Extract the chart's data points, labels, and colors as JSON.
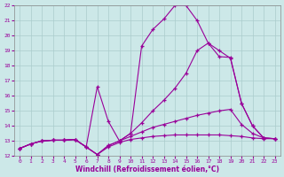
{
  "background_color": "#cce8e8",
  "grid_color": "#aacccc",
  "line_color": "#990099",
  "xlabel": "Windchill (Refroidissement éolien,°C)",
  "xlabel_color": "#990099",
  "ylabel_ticks": [
    12,
    13,
    14,
    15,
    16,
    17,
    18,
    19,
    20,
    21,
    22
  ],
  "xlabel_ticks": [
    0,
    1,
    2,
    3,
    4,
    5,
    6,
    7,
    8,
    9,
    10,
    11,
    12,
    13,
    14,
    15,
    16,
    17,
    18,
    19,
    20,
    21,
    22,
    23
  ],
  "xlim": [
    -0.5,
    23.5
  ],
  "ylim": [
    12,
    22
  ],
  "line1_x": [
    0,
    1,
    2,
    3,
    4,
    5,
    6,
    7,
    8,
    9,
    10,
    11,
    12,
    13,
    14,
    15,
    16,
    17,
    18,
    19,
    20,
    21,
    22,
    23
  ],
  "line1_y": [
    12.5,
    12.8,
    13.0,
    13.05,
    13.05,
    13.1,
    12.6,
    12.1,
    12.6,
    12.9,
    13.1,
    13.2,
    13.3,
    13.35,
    13.4,
    13.4,
    13.4,
    13.4,
    13.4,
    13.35,
    13.3,
    13.2,
    13.15,
    13.15
  ],
  "line2_x": [
    0,
    1,
    2,
    3,
    4,
    5,
    6,
    7,
    8,
    9,
    10,
    11,
    12,
    13,
    14,
    15,
    16,
    17,
    18,
    19,
    20,
    21,
    22,
    23
  ],
  "line2_y": [
    12.5,
    12.8,
    13.0,
    13.05,
    13.05,
    13.1,
    12.6,
    12.1,
    12.7,
    13.0,
    13.3,
    13.6,
    13.9,
    14.1,
    14.3,
    14.5,
    14.7,
    14.85,
    15.0,
    15.1,
    14.1,
    13.5,
    13.2,
    13.15
  ],
  "line3_x": [
    0,
    1,
    2,
    3,
    4,
    5,
    6,
    7,
    8,
    9,
    10,
    11,
    12,
    13,
    14,
    15,
    16,
    17,
    18,
    19,
    20,
    21,
    22,
    23
  ],
  "line3_y": [
    12.5,
    12.8,
    13.0,
    13.05,
    13.05,
    13.1,
    12.6,
    16.6,
    14.3,
    13.0,
    13.5,
    14.2,
    15.0,
    15.7,
    16.5,
    17.5,
    19.0,
    19.5,
    19.0,
    18.5,
    15.5,
    14.0,
    13.2,
    13.15
  ],
  "line4_x": [
    0,
    1,
    2,
    3,
    4,
    5,
    6,
    7,
    8,
    9,
    10,
    11,
    12,
    13,
    14,
    15,
    16,
    17,
    18,
    19,
    20,
    21,
    22,
    23
  ],
  "line4_y": [
    12.5,
    12.8,
    13.0,
    13.05,
    13.05,
    13.1,
    12.6,
    12.1,
    12.7,
    13.0,
    13.5,
    19.3,
    20.4,
    21.1,
    22.0,
    22.0,
    21.0,
    19.5,
    18.6,
    18.55,
    15.5,
    14.0,
    13.2,
    13.15
  ]
}
